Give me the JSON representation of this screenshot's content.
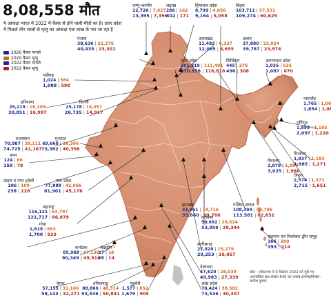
{
  "title": "8,08,558 मौत",
  "subtitle": "ये आंकड़ा भारत में 2022 में कैंसर से होने वाली मौतों का है। उत्तर प्रदेश में पिछले तीन सालों से मृत्यु का आंकड़ा एक लाख के पार जा रहा है",
  "legend": [
    {
      "label": "2020 कैंसर मामले",
      "color": "#1d2a8a"
    },
    {
      "label": "2020 कैंसर मृत्यु",
      "color": "#d2691e"
    },
    {
      "label": "2022 कैंसर मामले",
      "color": "#1d2a8a"
    },
    {
      "label": "2022 कैंसर मृत्यु",
      "color": "#b22222"
    }
  ],
  "states": {
    "jk": {
      "name": "जम्मू-कश्मीर",
      "c20": "12,726",
      "d20": "7,027",
      "c22": "13,395",
      "d22": "7,396"
    },
    "ladakh": {
      "name": "लद्दाख",
      "c20": "286",
      "d20": "162",
      "c22": "302",
      "d22": "171"
    },
    "hp": {
      "name": "हिमाचल प्रदेश",
      "c20": "8,799",
      "d20": "4,856",
      "c22": "9,164",
      "d22": "5,058"
    },
    "bihar": {
      "name": "बिहार",
      "c20": "103,711",
      "d20": "57,531",
      "c22": "109,274",
      "d22": "60,629"
    },
    "punjab": {
      "name": "पंजाब",
      "c20": "38,636",
      "d20": "22,276",
      "c22": "40,435",
      "d22": "23,301"
    },
    "uk": {
      "name": "उत्तराखंड",
      "c20": "11,482",
      "d20": "6,337",
      "c22": "12,065",
      "d22": "6,655"
    },
    "assam": {
      "name": "असम",
      "c20": "37,880",
      "d20": "22,824",
      "c22": "39,787",
      "d22": "23,974"
    },
    "up": {
      "name": "उत्तर प्रदेश",
      "c20": "201,319",
      "d20": "111,491",
      "c22": "210,958",
      "d22": "116,818"
    },
    "sikkim": {
      "name": "सिक्किम",
      "c20": "445",
      "d20": "276",
      "c22": "496",
      "d22": "308"
    },
    "arunachal": {
      "name": "अरुणाचल प्रदेश",
      "c20": "1,035",
      "d20": "635",
      "c22": "1,087",
      "d22": "670"
    },
    "chandigarh": {
      "name": "चंडीगढ़",
      "c20": "1,024",
      "d20": "564",
      "c22": "1,088",
      "d22": "598"
    },
    "haryana": {
      "name": "हरियाणा",
      "c20": "29,219",
      "d20": "16,109",
      "c22": "30,851",
      "d22": "16,997"
    },
    "delhi": {
      "name": "दिल्ली",
      "c20": "25,178",
      "d20": "14,057",
      "c22": "26,735",
      "d22": "14,917"
    },
    "nagaland": {
      "name": "नागालैंड",
      "c20": "1,765",
      "d20": "1,008",
      "c22": "1,854",
      "d22": "1,060"
    },
    "rajasthan": {
      "name": "राजस्थान",
      "c20": "70,987",
      "d20": "39,111",
      "c22": "74,725",
      "d22": "41,167"
    },
    "gujarat": {
      "name": "गुजरात",
      "c20": "69,660",
      "d20": "38,306",
      "c22": "73,382",
      "d22": "40,356"
    },
    "manipur": {
      "name": "मणिपुर",
      "c20": "1,899",
      "d20": "1,105",
      "c22": "2,097",
      "d22": "1,220"
    },
    "daman": {
      "name": "दमन",
      "c20": "124",
      "d20": "66",
      "c22": "150",
      "d22": "79"
    },
    "mizoram": {
      "name": "मिजोरम",
      "c20": "1,837",
      "d20": "1,183",
      "c22": "1,985",
      "d22": "1,271"
    },
    "dnh": {
      "name": "दादरा व नगर हवेली",
      "c20": "206",
      "d20": "109",
      "c22": "238",
      "d22": "128"
    },
    "mp": {
      "name": "मध्य प्रदेश",
      "c20": "77,888",
      "d20": "42,966",
      "c22": "81,901",
      "d22": "45,176"
    },
    "meghalaya": {
      "name": "मेघालय",
      "c20": "2,879",
      "d20": "1,887",
      "c22": "3,025",
      "d22": "1,980"
    },
    "tripura": {
      "name": "त्रिपुरा",
      "c20": "2,574",
      "d20": "1,571",
      "c22": "2,715",
      "d22": "1,651"
    },
    "jharkhand": {
      "name": "झारखंड",
      "c20": "33,961",
      "d20": "18,716",
      "c22": "35,860",
      "d22": "19,766"
    },
    "wb": {
      "name": "पश्चिम बंगाल",
      "c20": "108,394",
      "d20": "59,786",
      "c22": "113,581",
      "d22": "62,652"
    },
    "maharashtra": {
      "name": "महाराष्ट्र",
      "c20": "116,121",
      "d20": "63,797",
      "c22": "121,717",
      "d22": "66,879"
    },
    "odisha": {
      "name": "ओडिशा",
      "c20": "50,692",
      "d20": "28,024",
      "c22": "53,059",
      "d22": "29,344"
    },
    "goa": {
      "name": "गोवा",
      "c20": "1,618",
      "d20": "893",
      "c22": "1,700",
      "d22": "932"
    },
    "chhattisgarh": {
      "name": "छत्तीसगढ़",
      "c20": "27,828",
      "d20": "15,279",
      "c22": "29,253",
      "d22": "16,057"
    },
    "andaman": {
      "name": "अंडमान एवं निकोबार द्वीप समूह",
      "c20": "366",
      "d20": "200",
      "c22": "393",
      "d22": "214"
    },
    "karnataka": {
      "name": "कर्नाटक",
      "c20": "85,968",
      "d20": "47,130",
      "c22": "90,349",
      "d22": "49,516"
    },
    "lakshadweep": {
      "name": "लक्षद्वीप",
      "c20": "27",
      "d20": "13",
      "c22": "28",
      "d22": "14"
    },
    "telangana": {
      "name": "तेलंगाना",
      "c20": "47,620",
      "d20": "26,038",
      "c22": "49,983",
      "d22": "27,339"
    },
    "ap": {
      "name": "आंध्र प्रदेश",
      "c20": "70,424",
      "d20": "38,582",
      "c22": "73,536",
      "d22": "40,307"
    },
    "kerala": {
      "name": "केरल",
      "c20": "57,155",
      "d20": "31,166",
      "c22": "59,143",
      "d22": "32,271"
    },
    "tn": {
      "name": "तमिलनाडु",
      "c20": "88,866",
      "d20": "48,314",
      "c22": "93,536",
      "d22": "50,841"
    },
    "puducherry": {
      "name": "पुडुचेरी",
      "c20": "1,577",
      "d20": "852",
      "c22": "1,679",
      "d22": "905"
    }
  },
  "source": "स्रोत : लोकसभा में 9 दिसंबर 2022 को पूछे गए अतारांकित प्रश्न संख्या 640 का जवाब इन्फोग्राफिक्स : कमीश कुमार"
}
